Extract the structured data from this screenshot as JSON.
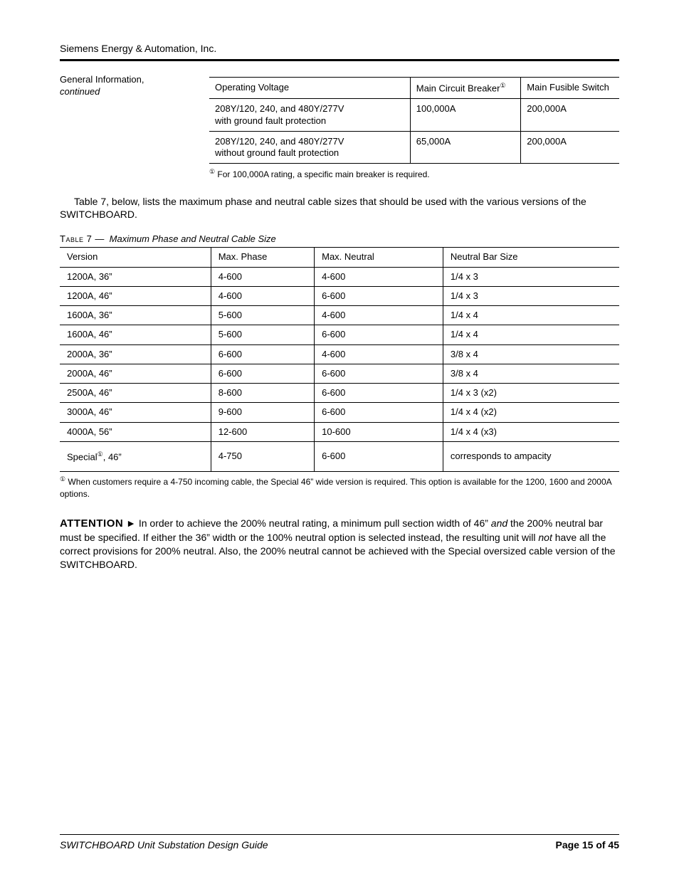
{
  "colors": {
    "text": "#000000",
    "background": "#ffffff",
    "rule": "#000000"
  },
  "typography": {
    "body_pt": 10,
    "small_pt": 9,
    "running_head_pt": 10
  },
  "running_head": "Siemens Energy & Automation, Inc.",
  "left_column": {
    "section_title": "General Information,",
    "continued": "continued"
  },
  "table6": {
    "type": "table",
    "columns": [
      {
        "key": "voltage",
        "label": "Operating Voltage",
        "width_pct": 49
      },
      {
        "key": "main_cb",
        "label": "Main Circuit Breaker",
        "sup": "①",
        "width_pct": 27
      },
      {
        "key": "main_fs",
        "label": "Main Fusible Switch",
        "width_pct": 24
      }
    ],
    "rows": [
      {
        "voltage_lines": [
          "208Y/120, 240, and 480Y/277V",
          "with ground fault protection"
        ],
        "main_cb": "100,000A",
        "main_fs": "200,000A"
      },
      {
        "voltage_lines": [
          "208Y/120, 240, and 480Y/277V",
          "without ground fault protection"
        ],
        "main_cb": "65,000A",
        "main_fs": "200,000A"
      }
    ],
    "footnote": {
      "sup": "①",
      "text": "For 100,000A rating, a specific main breaker is required."
    }
  },
  "intro_para": "Table 7, below, lists the maximum phase and neutral cable sizes that should be used with the various versions of the SWITCHBOARD.",
  "table7": {
    "type": "table",
    "label": "Table 7  ",
    "title": "Maximum Phase and Neutral Cable Size",
    "columns": [
      {
        "key": "version",
        "label": "Version",
        "class": "c-version"
      },
      {
        "key": "max_phase",
        "label": "Max. Phase",
        "class": "c-maxphase"
      },
      {
        "key": "max_neutral",
        "label": "Max. Neutral",
        "class": "c-maxneutral"
      },
      {
        "key": "neutral_bar",
        "label": "Neutral Bar Size",
        "class": "c-neutralbar"
      }
    ],
    "rows": [
      {
        "version": "1200A, 36”",
        "max_phase": "4-600",
        "max_neutral": "4-600",
        "neutral_bar": "1/4 x 3"
      },
      {
        "version": "1200A, 46”",
        "max_phase": "4-600",
        "max_neutral": "6-600",
        "neutral_bar": "1/4 x 3"
      },
      {
        "version": "1600A, 36”",
        "max_phase": "5-600",
        "max_neutral": "4-600",
        "neutral_bar": "1/4 x 4"
      },
      {
        "version": "1600A, 46”",
        "max_phase": "5-600",
        "max_neutral": "6-600",
        "neutral_bar": "1/4 x 4"
      },
      {
        "version": "2000A, 36”",
        "max_phase": "6-600",
        "max_neutral": "4-600",
        "neutral_bar": "3/8 x 4"
      },
      {
        "version": "2000A, 46”",
        "max_phase": "6-600",
        "max_neutral": "6-600",
        "neutral_bar": "3/8 x 4"
      },
      {
        "version": "2500A, 46”",
        "max_phase": "8-600",
        "max_neutral": "6-600",
        "neutral_bar": "1/4 x 3 (x2)"
      },
      {
        "version": "3000A, 46”",
        "max_phase": "9-600",
        "max_neutral": "6-600",
        "neutral_bar": "1/4 x 4 (x2)"
      },
      {
        "version": "4000A, 56”",
        "max_phase": "12-600",
        "max_neutral": "10-600",
        "neutral_bar": "1/4 x 4 (x3)"
      }
    ],
    "special_row": {
      "sup": "①",
      "version": "Special  , 46”",
      "max_phase": "4-750",
      "max_neutral": "6-600",
      "neutral_bar": "corresponds to ampacity"
    },
    "footnote": {
      "sup": "①",
      "text": "When customers require a 4-750 incoming cable, the Special 46” wide version is required.  This option is available for the 1200, 1600 and 2000A options."
    }
  },
  "attention": {
    "label": "ATTENTION",
    "body_html": "In order to achieve the 200% neutral rating, a minimum pull section width of 46” <i>and</i> the 200% neutral bar must be specified.  If either the 36” width or the 100% neutral option is selected instead, the resulting unit will <i>not</i> have all the correct provisions for 200% neutral.  Also, the 200% neutral cannot be achieved with the Special oversized cable version of the SWITCHBOARD."
  },
  "footer": {
    "left": "SWITCHBOARD Unit Substation Design Guide",
    "right": "Page 15 of 45"
  }
}
